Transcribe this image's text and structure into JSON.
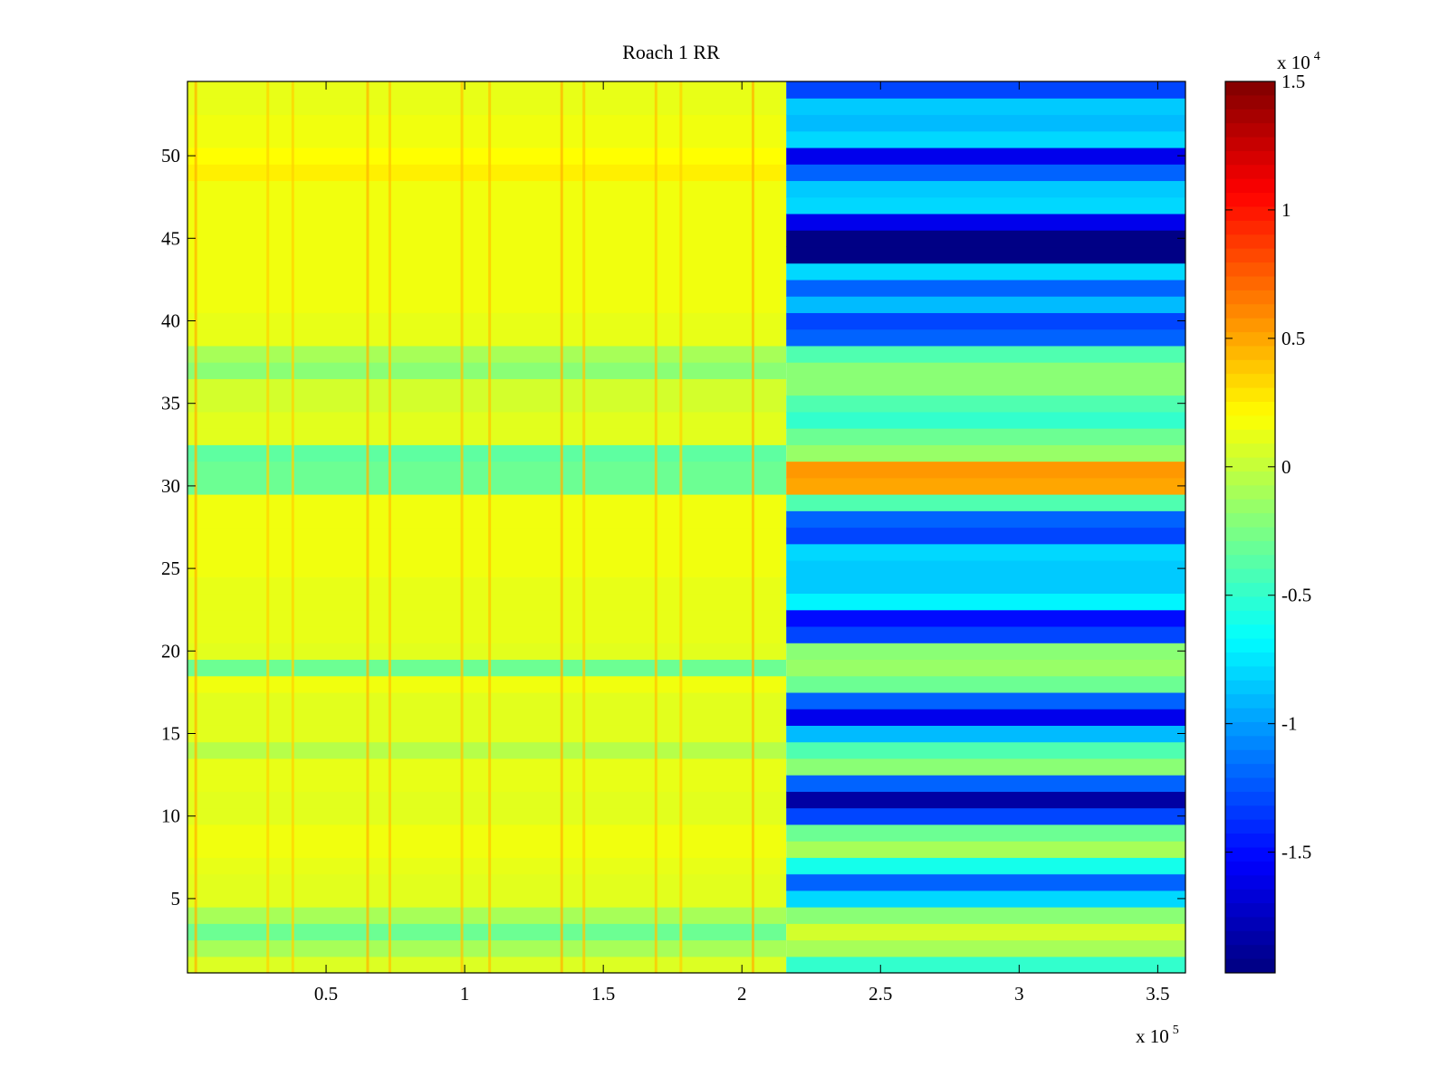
{
  "chart_data": {
    "type": "heatmap",
    "title": "Roach 1 RR",
    "colormap": "jet",
    "xlabel": "",
    "ylabel": "",
    "x_exponent": {
      "base": "x 10",
      "power": "5"
    },
    "xlim": [
      0,
      3.6
    ],
    "ylim": [
      0.5,
      54.5
    ],
    "x_ticks": [
      0.5,
      1,
      1.5,
      2,
      2.5,
      3,
      3.5
    ],
    "x_tick_labels": [
      "0.5",
      "1",
      "1.5",
      "2",
      "2.5",
      "3",
      "3.5"
    ],
    "y_ticks": [
      5,
      10,
      15,
      20,
      25,
      30,
      35,
      40,
      45,
      50
    ],
    "y_tick_labels": [
      "5",
      "10",
      "15",
      "20",
      "25",
      "30",
      "35",
      "40",
      "45",
      "50"
    ],
    "colorbar": {
      "exponent": {
        "base": "x 10",
        "power": "4"
      },
      "clim": [
        -1.97,
        1.5
      ],
      "ticks": [
        1.5,
        1,
        0.5,
        0,
        -0.5,
        -1,
        -1.5
      ],
      "tick_labels": [
        "1.5",
        "1",
        "0.5",
        "0",
        "-0.5",
        "-1",
        "-1.5"
      ]
    },
    "split_x": 2.16,
    "rows": [
      1,
      2,
      3,
      4,
      5,
      6,
      7,
      8,
      9,
      10,
      11,
      12,
      13,
      14,
      15,
      16,
      17,
      18,
      19,
      20,
      21,
      22,
      23,
      24,
      25,
      26,
      27,
      28,
      29,
      30,
      31,
      32,
      33,
      34,
      35,
      36,
      37,
      38,
      39,
      40,
      41,
      42,
      43,
      44,
      45,
      46,
      47,
      48,
      49,
      50,
      51,
      52,
      53,
      54
    ],
    "left_segment_values": [
      0.08,
      -0.1,
      -0.3,
      -0.1,
      0.1,
      0.1,
      0.12,
      0.15,
      0.15,
      0.1,
      0.1,
      0.12,
      0.12,
      -0.05,
      0.1,
      0.1,
      0.1,
      0.15,
      -0.3,
      0.1,
      0.12,
      0.12,
      0.12,
      0.12,
      0.15,
      0.15,
      0.15,
      0.15,
      0.15,
      -0.3,
      -0.3,
      -0.35,
      0.1,
      0.1,
      0.05,
      0.05,
      -0.2,
      -0.1,
      0.12,
      0.12,
      0.15,
      0.15,
      0.15,
      0.15,
      0.15,
      0.15,
      0.15,
      0.15,
      0.25,
      0.2,
      0.15,
      0.15,
      0.12,
      0.12
    ],
    "right_segment_values": [
      -0.5,
      -0.1,
      0.05,
      -0.2,
      -0.8,
      -1.2,
      -0.6,
      -0.1,
      -0.3,
      -1.3,
      -1.85,
      -1.2,
      -0.2,
      -0.4,
      -0.9,
      -1.6,
      -1.2,
      -0.3,
      -0.15,
      -0.2,
      -1.3,
      -1.5,
      -0.7,
      -0.85,
      -0.85,
      -0.8,
      -1.3,
      -1.2,
      -0.4,
      0.5,
      0.55,
      -0.15,
      -0.3,
      -0.5,
      -0.4,
      -0.2,
      -0.2,
      -0.4,
      -1.2,
      -1.3,
      -0.9,
      -1.2,
      -0.8,
      -1.95,
      -1.95,
      -1.6,
      -0.8,
      -0.85,
      -1.2,
      -1.6,
      -0.8,
      -0.9,
      -0.85,
      -1.3
    ],
    "left_streak_x": [
      0.03,
      0.29,
      0.38,
      0.65,
      0.73,
      0.99,
      1.09,
      1.35,
      1.43,
      1.69,
      1.78,
      2.04
    ],
    "left_streak_values": [
      0.45,
      0.35,
      0.35,
      0.45,
      0.4,
      0.4,
      0.4,
      0.45,
      0.4,
      0.4,
      0.35,
      0.45
    ]
  }
}
